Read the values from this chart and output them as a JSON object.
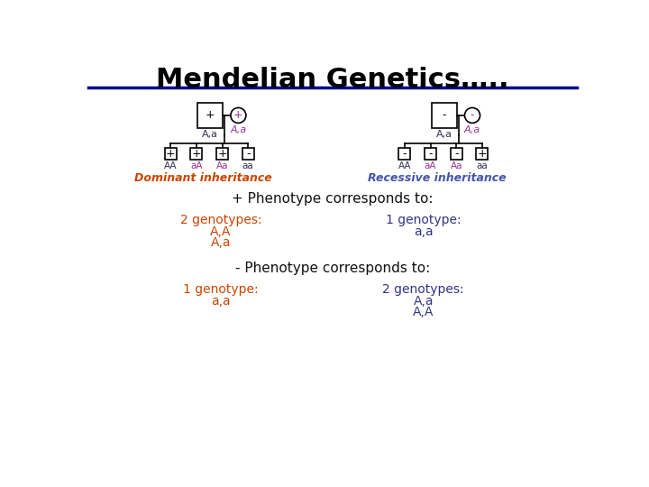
{
  "title": "Mendelian Genetics…..",
  "title_color": "#000000",
  "title_fontsize": 22,
  "title_bold": true,
  "line_color": "#00008B",
  "background_color": "#ffffff",
  "dominant_label": "Dominant inheritance",
  "recessive_label": "Recessive inheritance",
  "dominant_color": "#CC4400",
  "recessive_color": "#4455AA",
  "genotype_color_black": "#333355",
  "genotype_color_purple": "#993399",
  "plus_phenotype_header": "+ Phenotype corresponds to:",
  "minus_phenotype_header": "- Phenotype corresponds to:",
  "plus_left_label": "2 genotypes:",
  "plus_left_items": [
    "A,A",
    "A,a"
  ],
  "plus_right_label": "1 genotype:",
  "plus_right_items": [
    "a,a"
  ],
  "minus_left_label": "1 genotype:",
  "minus_left_items": [
    "a,a"
  ],
  "minus_right_label": "2 genotypes:",
  "minus_right_items": [
    "A,a",
    "A,A"
  ],
  "text_orange": "#CC4400",
  "text_dark_blue": "#333388",
  "text_purple": "#993399",
  "header_color": "#111111",
  "node_label_black": "#333355",
  "node_label_purple": "#993399"
}
